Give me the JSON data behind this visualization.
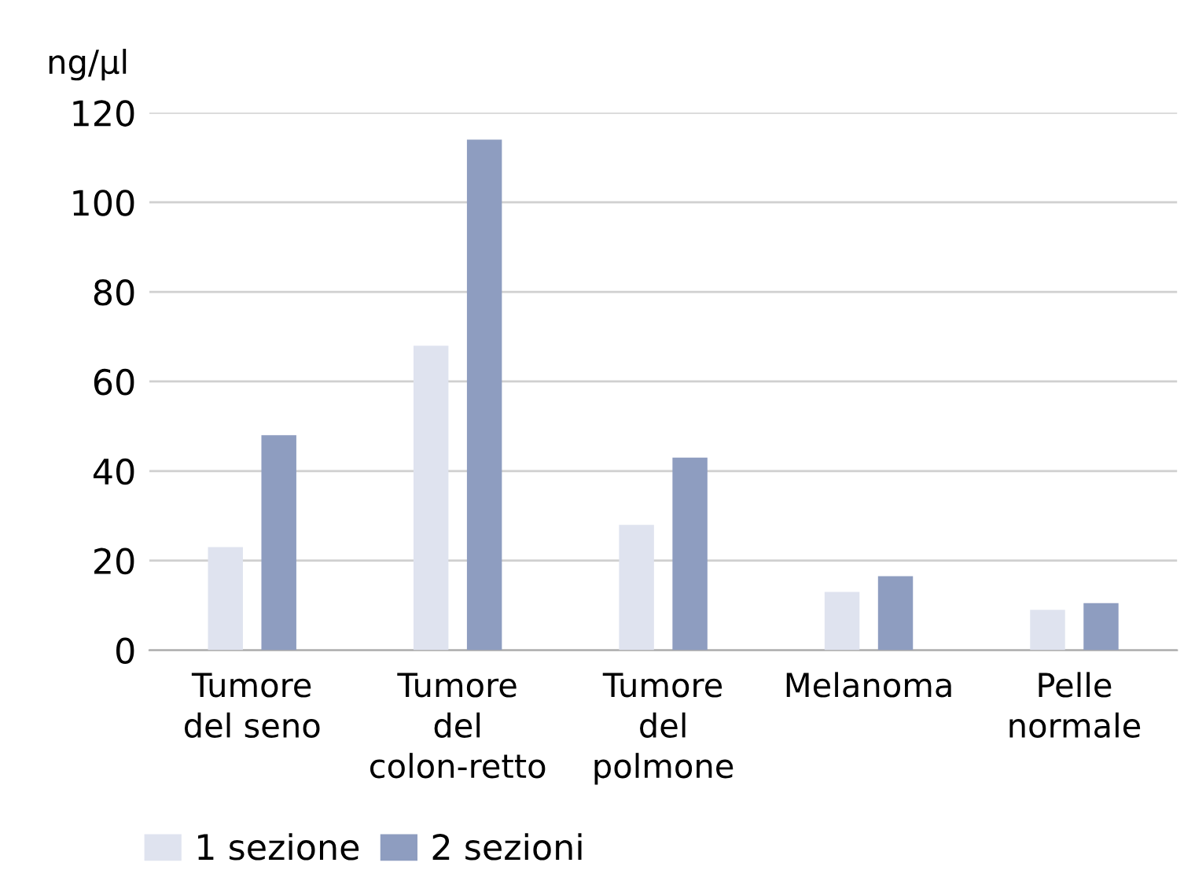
{
  "chart_data": {
    "type": "bar",
    "ylabel": "ng/µl",
    "categories": [
      "Tumore\ndel seno",
      "Tumore\ndel\ncolon-retto",
      "Tumore\ndel\npolmone",
      "Melanoma",
      "Pelle\nnormale"
    ],
    "series": [
      {
        "name": "1 sezione",
        "color": "#dfe3ef",
        "values": [
          23,
          68,
          28,
          13,
          9
        ]
      },
      {
        "name": "2 sezioni",
        "color": "#8e9dc0",
        "values": [
          48,
          114,
          43,
          16.5,
          10.5
        ]
      }
    ],
    "ylim": [
      0,
      120
    ],
    "yticks": [
      0,
      20,
      40,
      60,
      80,
      100,
      120
    ],
    "grid": "y",
    "legend": "bottom left"
  }
}
